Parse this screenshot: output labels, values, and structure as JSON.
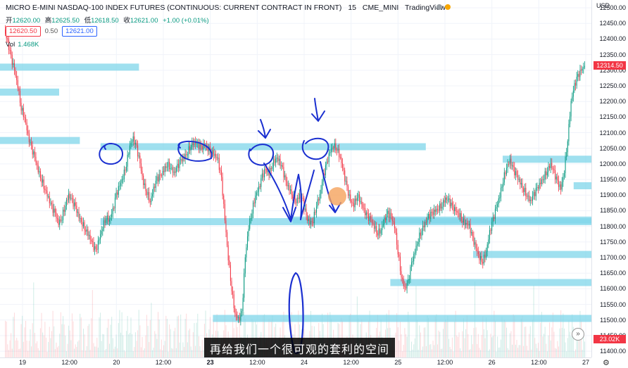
{
  "header": {
    "symbol_title": "MICRO E-MINI NASDAQ-100 INDEX FUTURES (CONTINUOUS: CURRENT CONTRACT IN FRONT)",
    "interval": "15",
    "exchange": "CME_MINI",
    "source": "TradingView"
  },
  "ohlc": {
    "open_label": "开",
    "open": "12620.00",
    "high_label": "高",
    "high": "12625.50",
    "low_label": "低",
    "low": "12618.50",
    "close_label": "收",
    "close": "12621.00",
    "change": "+1.00 (+0.01%)"
  },
  "trade": {
    "sell_price": "12620.50",
    "spread": "0.50",
    "buy_price": "12621.00"
  },
  "volume": {
    "label": "Vol",
    "value": "1.468K"
  },
  "price_axis": {
    "currency": "USD",
    "ticks": [
      "12500.00",
      "12450.00",
      "12400.00",
      "12350.00",
      "12300.00",
      "12250.00",
      "12200.00",
      "12150.00",
      "12100.00",
      "12050.00",
      "12000.00",
      "11950.00",
      "11900.00",
      "11850.00",
      "11800.00",
      "11750.00",
      "11700.00",
      "11650.00",
      "11600.00",
      "11550.00",
      "11500.00",
      "11450.00",
      "11400.00"
    ],
    "current_price": "12314.50",
    "volume_marker": "23.02K"
  },
  "time_axis": {
    "ticks": [
      {
        "label": "19",
        "bold": false
      },
      {
        "label": "12:00",
        "bold": false
      },
      {
        "label": "20",
        "bold": false
      },
      {
        "label": "12:00",
        "bold": false
      },
      {
        "label": "23",
        "bold": true
      },
      {
        "label": "12:00",
        "bold": false
      },
      {
        "label": "24",
        "bold": false
      },
      {
        "label": "12:00",
        "bold": false
      },
      {
        "label": "25",
        "bold": false
      },
      {
        "label": "12:00",
        "bold": false
      },
      {
        "label": "26",
        "bold": false
      },
      {
        "label": "12:00",
        "bold": false
      },
      {
        "label": "27",
        "bold": false
      }
    ]
  },
  "subtitle": "再给我们一个很可观的套利的空间",
  "colors": {
    "up": "#089981",
    "down": "#f23645",
    "zone": "#7fd6ea",
    "annotation": "#1a2fd0",
    "cursor": "#f5a25d"
  },
  "chart_data": {
    "type": "line",
    "series": [
      {
        "values": [
          12430,
          12390,
          12340,
          12300,
          12250,
          12180,
          12150,
          12090,
          12050,
          12020,
          11980,
          11950,
          11920,
          11890,
          11860,
          11840,
          11810,
          11830,
          11870,
          11900,
          11880,
          11860,
          11830,
          11810,
          11790,
          11770,
          11740,
          11720,
          11760,
          11800,
          11830,
          11820,
          11850,
          11900,
          11930,
          11960,
          12000,
          12060,
          12080,
          12050,
          12000,
          11940,
          11910,
          11880,
          11920,
          11950,
          11960,
          11980,
          12000,
          11990,
          11970,
          11990,
          12010,
          12020,
          12040,
          12060,
          12070,
          12060,
          12050,
          12060,
          12050,
          12040,
          12030,
          12010,
          11950,
          11820,
          11700,
          11600,
          11520,
          11500,
          11520,
          11700,
          11800,
          11850,
          11900,
          11920,
          11960,
          11980,
          11970,
          12000,
          12020,
          12010,
          11980,
          11940,
          11920,
          11900,
          11880,
          11900,
          11880,
          11830,
          11810,
          11820,
          11870,
          11900,
          11960,
          12000,
          12040,
          12060,
          12050,
          12020,
          11970,
          11920,
          11880,
          11870,
          11900,
          11880,
          11850,
          11830,
          11820,
          11800,
          11780,
          11790,
          11820,
          11840,
          11830,
          11800,
          11720,
          11640,
          11600,
          11620,
          11680,
          11720,
          11760,
          11790,
          11810,
          11830,
          11840,
          11850,
          11860,
          11870,
          11890,
          11880,
          11860,
          11850,
          11840,
          11820,
          11810,
          11800,
          11760,
          11730,
          11700,
          11690,
          11720,
          11780,
          11820,
          11860,
          11900,
          11950,
          11990,
          12010,
          11980,
          11960,
          11940,
          11920,
          11900,
          11880,
          11900,
          11920,
          11940,
          11960,
          11980,
          12000,
          11970,
          11940,
          11920,
          11980,
          12080,
          12200,
          12250,
          12280,
          12300,
          12314
        ]
      }
    ],
    "y_range": [
      11380,
      12525
    ],
    "zones": [
      {
        "price": 12310,
        "x0": 0.0,
        "x1": 0.235
      },
      {
        "price": 12230,
        "x0": 0.0,
        "x1": 0.1
      },
      {
        "price": 12075,
        "x0": 0.0,
        "x1": 0.135
      },
      {
        "price": 12055,
        "x0": 0.17,
        "x1": 0.72
      },
      {
        "price": 11815,
        "x0": 0.17,
        "x1": 1.0
      },
      {
        "price": 11820,
        "x0": 0.495,
        "x1": 1.0
      },
      {
        "price": 12015,
        "x0": 0.85,
        "x1": 1.0
      },
      {
        "price": 11930,
        "x0": 0.97,
        "x1": 1.0
      },
      {
        "price": 11710,
        "x0": 0.8,
        "x1": 1.0
      },
      {
        "price": 11620,
        "x0": 0.66,
        "x1": 1.0
      },
      {
        "price": 11505,
        "x0": 0.36,
        "x1": 1.0
      }
    ]
  }
}
